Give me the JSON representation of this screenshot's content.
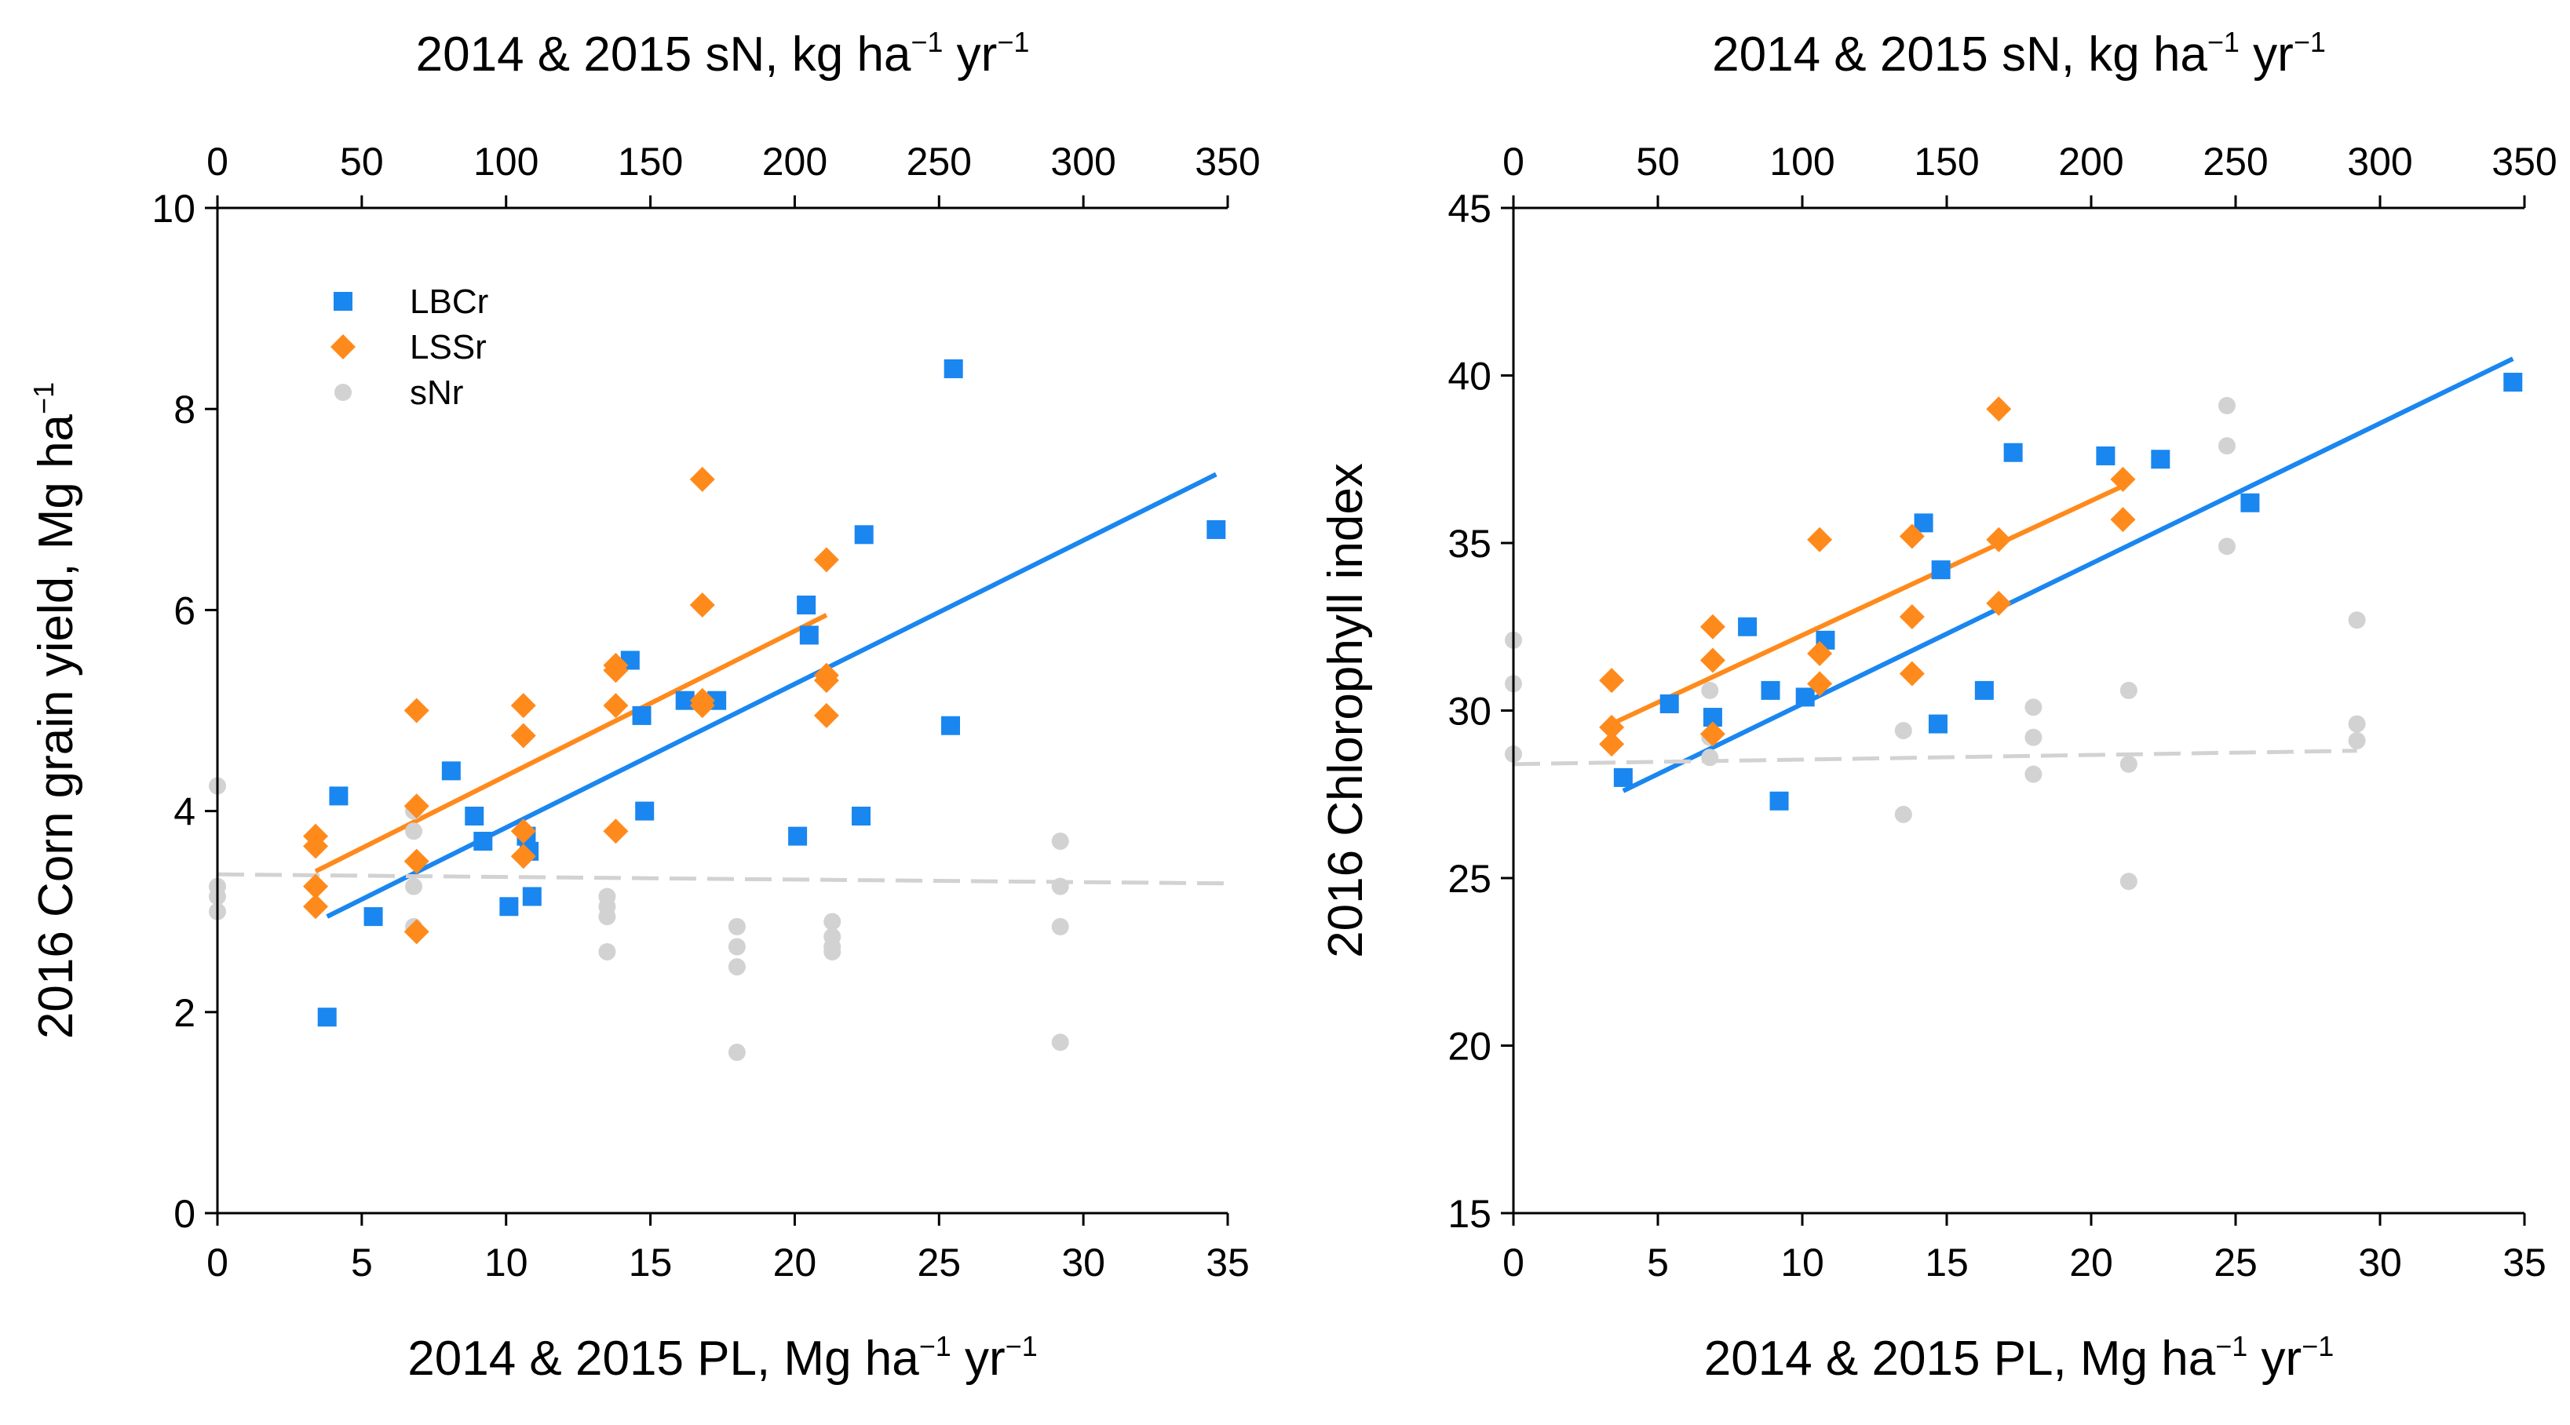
{
  "colors": {
    "LBCr": "#1a86f0",
    "LSSr": "#ff8a1c",
    "sNr": "#d2d2d2",
    "axis": "#000000"
  },
  "legend": [
    "LBCr",
    "LSSr",
    "sNr"
  ],
  "chart_data": [
    {
      "type": "scatter",
      "panel": "left",
      "title": "",
      "xlabel": "2014 & 2015 PL, Mg ha",
      "xlabel_sup": "−1",
      "xlabel_unit": " yr",
      "xlabel_unit_sup": "−1",
      "top_xlabel": "2014 & 2015 sN, kg ha",
      "top_xlabel_sup": "−1",
      "top_xlabel_unit": " yr",
      "top_xlabel_unit_sup": "−1",
      "ylabel": "2016 Corn grain yield, Mg ha",
      "ylabel_sup": "−1",
      "xlim": [
        0,
        35
      ],
      "ylim": [
        0,
        10
      ],
      "top_xlim": [
        0,
        350
      ],
      "x_ticks": [
        "0",
        "5",
        "10",
        "15",
        "20",
        "25",
        "30",
        "35"
      ],
      "y_ticks": [
        "0",
        "2",
        "4",
        "6",
        "8",
        "10"
      ],
      "top_x_ticks": [
        "0",
        "50",
        "100",
        "150",
        "200",
        "250",
        "300",
        "350"
      ],
      "series": [
        {
          "name": "LBCr",
          "marker": "square",
          "x": [
            3.8,
            4.2,
            5.4,
            8.1,
            8.9,
            9.2,
            10.1,
            10.7,
            10.8,
            10.9,
            14.3,
            14.7,
            14.8,
            16.2,
            17.3,
            20.1,
            20.4,
            20.5,
            22.3,
            22.4,
            25.4,
            25.5,
            34.6
          ],
          "y": [
            1.95,
            4.15,
            2.95,
            4.4,
            3.95,
            3.7,
            3.05,
            3.75,
            3.6,
            3.15,
            5.5,
            4.95,
            4.0,
            5.1,
            5.1,
            3.75,
            6.05,
            5.75,
            3.95,
            6.75,
            4.85,
            8.4,
            6.8
          ],
          "trend": {
            "x": [
              3.8,
              34.6
            ],
            "y": [
              2.95,
              7.35
            ]
          }
        },
        {
          "name": "LSSr",
          "marker": "diamond",
          "x": [
            3.4,
            3.4,
            3.4,
            3.4,
            6.9,
            6.9,
            6.9,
            6.9,
            10.6,
            10.6,
            10.6,
            10.6,
            13.8,
            13.8,
            13.8,
            13.8,
            16.8,
            16.8,
            16.8,
            16.8,
            21.1,
            21.1,
            21.1,
            21.1
          ],
          "y": [
            3.75,
            3.65,
            3.25,
            3.05,
            5.0,
            4.05,
            3.5,
            2.8,
            5.05,
            4.75,
            3.8,
            3.55,
            5.45,
            5.4,
            5.05,
            3.8,
            7.3,
            6.05,
            5.1,
            5.05,
            6.5,
            5.35,
            5.3,
            4.95
          ],
          "trend": {
            "x": [
              3.4,
              21.1
            ],
            "y": [
              3.4,
              5.95
            ]
          }
        },
        {
          "name": "sNr",
          "marker": "circle",
          "x": [
            0,
            0,
            0,
            0,
            6.8,
            6.8,
            6.8,
            6.8,
            13.5,
            13.5,
            13.5,
            13.5,
            18.0,
            18.0,
            18.0,
            18.0,
            21.3,
            21.3,
            21.3,
            21.3,
            29.2,
            29.2,
            29.2,
            29.2
          ],
          "y": [
            4.25,
            3.25,
            3.15,
            3.0,
            4.0,
            3.8,
            3.25,
            2.85,
            3.15,
            3.05,
            2.95,
            2.6,
            2.85,
            2.65,
            2.45,
            1.6,
            2.9,
            2.75,
            2.65,
            2.6,
            3.7,
            3.25,
            2.85,
            1.7
          ],
          "trend": {
            "x": [
              0,
              35
            ],
            "y": [
              3.37,
              3.28
            ]
          }
        }
      ]
    },
    {
      "type": "scatter",
      "panel": "right",
      "title": "",
      "xlabel": "2014 & 2015 PL, Mg ha",
      "xlabel_sup": "−1",
      "xlabel_unit": " yr",
      "xlabel_unit_sup": "−1",
      "top_xlabel": "2014 & 2015 sN, kg ha",
      "top_xlabel_sup": "−1",
      "top_xlabel_unit": " yr",
      "top_xlabel_unit_sup": "−1",
      "ylabel": "2016 Chlorophyll index",
      "xlim": [
        0,
        35
      ],
      "ylim": [
        15,
        45
      ],
      "top_xlim": [
        0,
        350
      ],
      "x_ticks": [
        "0",
        "5",
        "10",
        "15",
        "20",
        "25",
        "30",
        "35"
      ],
      "y_ticks": [
        "15",
        "20",
        "25",
        "30",
        "35",
        "40",
        "45"
      ],
      "top_x_ticks": [
        "0",
        "50",
        "100",
        "150",
        "200",
        "250",
        "300",
        "350"
      ],
      "series": [
        {
          "name": "LBCr",
          "marker": "square",
          "x": [
            3.8,
            5.4,
            6.9,
            8.1,
            8.9,
            9.2,
            10.1,
            10.8,
            14.2,
            14.8,
            14.7,
            16.3,
            17.3,
            20.5,
            22.4,
            25.5,
            34.6
          ],
          "y": [
            28.0,
            30.2,
            29.8,
            32.5,
            30.6,
            27.3,
            30.4,
            32.1,
            35.6,
            34.2,
            29.6,
            30.6,
            37.7,
            37.6,
            37.5,
            36.2,
            39.8
          ],
          "trend": {
            "x": [
              3.8,
              34.6
            ],
            "y": [
              27.6,
              40.5
            ]
          }
        },
        {
          "name": "LSSr",
          "marker": "diamond",
          "x": [
            3.4,
            3.4,
            3.4,
            6.9,
            6.9,
            6.9,
            10.6,
            10.6,
            10.6,
            13.8,
            13.8,
            13.8,
            16.8,
            16.8,
            16.8,
            21.1,
            21.1
          ],
          "y": [
            30.9,
            29.5,
            29.0,
            32.5,
            31.5,
            29.3,
            35.1,
            31.7,
            30.8,
            35.2,
            32.8,
            31.1,
            39.0,
            35.1,
            33.2,
            36.9,
            35.7
          ],
          "trend": {
            "x": [
              3.4,
              21.1
            ],
            "y": [
              29.6,
              36.7
            ]
          }
        },
        {
          "name": "sNr",
          "marker": "circle",
          "x": [
            0,
            0,
            0,
            6.8,
            6.8,
            6.8,
            13.5,
            13.5,
            18.0,
            18.0,
            18.0,
            21.3,
            21.3,
            21.3,
            24.7,
            24.7,
            24.7,
            29.2,
            29.2,
            29.2
          ],
          "y": [
            32.1,
            30.8,
            28.7,
            30.6,
            29.2,
            28.6,
            29.4,
            26.9,
            30.1,
            29.2,
            28.1,
            30.6,
            28.4,
            24.9,
            39.1,
            37.9,
            34.9,
            32.7,
            29.6,
            29.1
          ],
          "trend": {
            "x": [
              0,
              29.2
            ],
            "y": [
              28.4,
              28.8
            ]
          }
        }
      ]
    }
  ]
}
